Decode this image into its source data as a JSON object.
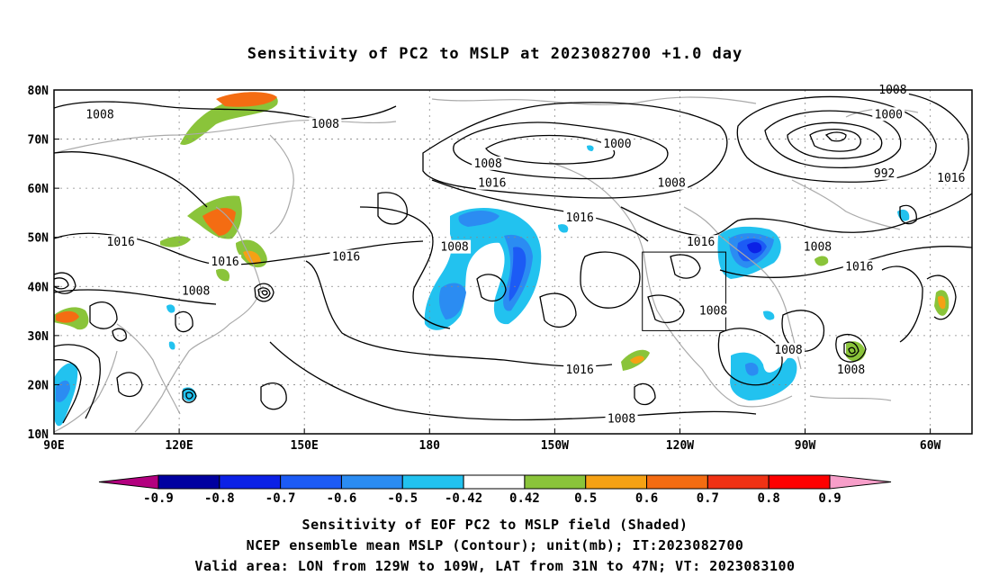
{
  "title": "Sensitivity of PC2 to MSLP at 2023082700 +1.0 day",
  "lat_labels": [
    "80N",
    "70N",
    "60N",
    "50N",
    "40N",
    "30N",
    "20N",
    "10N"
  ],
  "lon_labels": [
    "90E",
    "120E",
    "150E",
    "180",
    "150W",
    "120W",
    "90W",
    "60W"
  ],
  "map_extent": {
    "lon_min": 90,
    "lon_max": 310,
    "lat_min": 10,
    "lat_max": 80
  },
  "grid_lons": [
    120,
    150,
    180,
    210,
    240,
    270,
    300
  ],
  "grid_lats": [
    20,
    30,
    40,
    50,
    60,
    70
  ],
  "contour_labels": [
    {
      "text": "1008",
      "lon": 101,
      "lat": 75
    },
    {
      "text": "1008",
      "lon": 155,
      "lat": 73
    },
    {
      "text": "1000",
      "lon": 225,
      "lat": 69
    },
    {
      "text": "1008",
      "lon": 194,
      "lat": 65
    },
    {
      "text": "1016",
      "lon": 195,
      "lat": 61
    },
    {
      "text": "1008",
      "lon": 238,
      "lat": 61
    },
    {
      "text": "1016",
      "lon": 216,
      "lat": 54
    },
    {
      "text": "1008",
      "lon": 186,
      "lat": 48
    },
    {
      "text": "1016",
      "lon": 106,
      "lat": 49
    },
    {
      "text": "1016",
      "lon": 131,
      "lat": 45
    },
    {
      "text": "1016",
      "lon": 160,
      "lat": 46
    },
    {
      "text": "1008",
      "lon": 124,
      "lat": 39
    },
    {
      "text": "1016",
      "lon": 245,
      "lat": 49
    },
    {
      "text": "1008",
      "lon": 248,
      "lat": 35
    },
    {
      "text": "1016",
      "lon": 216,
      "lat": 23
    },
    {
      "text": "1008",
      "lon": 226,
      "lat": 13
    },
    {
      "text": "1008",
      "lon": 266,
      "lat": 27
    },
    {
      "text": "1008",
      "lon": 281,
      "lat": 23
    },
    {
      "text": "1016",
      "lon": 283,
      "lat": 44
    },
    {
      "text": "1008",
      "lon": 273,
      "lat": 48
    },
    {
      "text": "1008",
      "lon": 291,
      "lat": 80
    },
    {
      "text": "1000",
      "lon": 290,
      "lat": 75
    },
    {
      "text": "992",
      "lon": 289,
      "lat": 63
    },
    {
      "text": "1016",
      "lon": 305,
      "lat": 62
    }
  ],
  "valid_area_box": {
    "lon_min": 231,
    "lon_max": 251,
    "lat_min": 31,
    "lat_max": 47
  },
  "colorbar": {
    "ticks": [
      "-0.9",
      "-0.8",
      "-0.7",
      "-0.6",
      "-0.5",
      "-0.42",
      "0.42",
      "0.5",
      "0.6",
      "0.7",
      "0.8",
      "0.9"
    ],
    "colors": [
      "#b3007f",
      "#0000a0",
      "#0b21e6",
      "#1c5bf5",
      "#2b8cf2",
      "#22c2ef",
      "#ffffff",
      "#8ac43a",
      "#f5a114",
      "#f46c12",
      "#f03214",
      "#fe0000",
      "#f79ec9"
    ]
  },
  "captions": {
    "line1": "Sensitivity of EOF PC2 to MSLP field (Shaded)",
    "line2": "NCEP ensemble mean MSLP (Contour); unit(mb); IT:2023082700",
    "line3": "Valid area: LON from 129W to 109W, LAT from 31N to 47N; VT: 2023083100"
  }
}
